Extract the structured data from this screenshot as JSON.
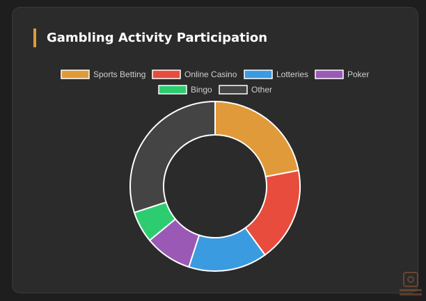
{
  "header": {
    "title": "Gambling Activity Participation"
  },
  "chart_data": {
    "type": "doughnut",
    "title": "Gambling Activity Participation",
    "legend_position": "top",
    "categories": [
      "Sports Betting",
      "Online Casino",
      "Lotteries",
      "Poker",
      "Bingo",
      "Other"
    ],
    "values": [
      22,
      18,
      15,
      9,
      6,
      30
    ],
    "colors": [
      "#e09a3a",
      "#e84c3d",
      "#3a9be0",
      "#9b59b6",
      "#2ecc71",
      "#444444"
    ]
  }
}
